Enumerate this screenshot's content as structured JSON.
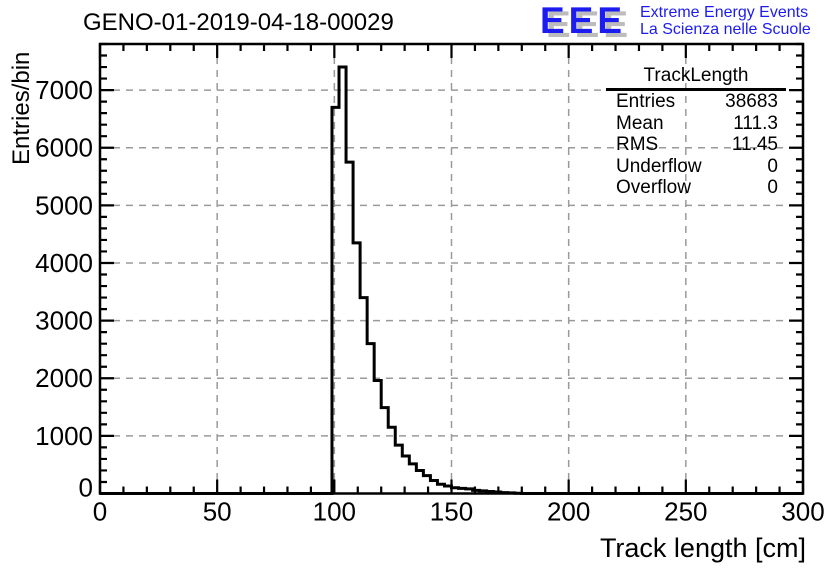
{
  "header": {
    "title": "GENO-01-2019-04-18-00029"
  },
  "logo": {
    "acronym": "EEE",
    "line1": "Extreme Energy Events",
    "line2": "La Scienza nelle Scuole",
    "color": "#1c1cf0",
    "shadow_color": "#bcbcbc"
  },
  "stats": {
    "title": "TrackLength",
    "rows": [
      {
        "label": "Entries",
        "value": "38683"
      },
      {
        "label": "Mean",
        "value": "111.3"
      },
      {
        "label": "RMS",
        "value": "11.45"
      },
      {
        "label": "Underflow",
        "value": "0"
      },
      {
        "label": "Overflow",
        "value": "0"
      }
    ]
  },
  "axes": {
    "x_title": "Track length [cm]",
    "y_title": "Entries/bin"
  },
  "chart_data": {
    "type": "bar",
    "title": "GENO-01-2019-04-18-00029",
    "xlabel": "Track length [cm]",
    "ylabel": "Entries/bin",
    "xlim": [
      0,
      300
    ],
    "ylim": [
      0,
      7800
    ],
    "x_major_ticks": [
      0,
      50,
      100,
      150,
      200,
      250,
      300
    ],
    "x_minor_step": 10,
    "y_major_ticks": [
      0,
      1000,
      2000,
      3000,
      4000,
      5000,
      6000,
      7000
    ],
    "y_minor_step": 200,
    "grid": true,
    "grid_color": "#9a9a9a",
    "line_color": "#000000",
    "frame_color": "#000000",
    "histogram": {
      "bin_start": 99,
      "bin_width": 3,
      "values": [
        6700,
        7400,
        5750,
        4350,
        3400,
        2600,
        1960,
        1490,
        1150,
        840,
        650,
        515,
        400,
        310,
        225,
        160,
        130,
        100,
        90,
        80,
        55,
        45,
        35,
        25,
        15,
        10,
        5
      ]
    }
  }
}
